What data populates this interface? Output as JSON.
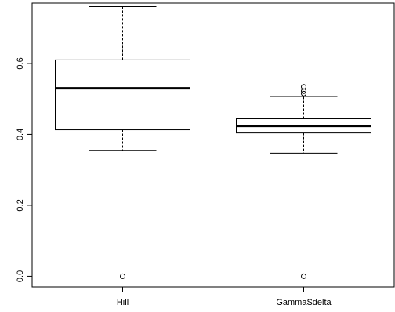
{
  "chart_data": {
    "type": "boxplot",
    "title": "",
    "xlabel": "",
    "ylabel": "",
    "ylim": [
      -0.03,
      0.77
    ],
    "y_ticks": [
      0.0,
      0.2,
      0.4,
      0.6
    ],
    "y_tick_labels": [
      "0.0",
      "0.2",
      "0.4",
      "0.6"
    ],
    "categories": [
      "Hill",
      "GammaSdelta"
    ],
    "boxes": [
      {
        "label": "Hill",
        "whisker_low": 0.355,
        "q1": 0.413,
        "median": 0.53,
        "q3": 0.61,
        "whisker_high": 0.76,
        "outliers": [
          0.0
        ]
      },
      {
        "label": "GammaSdelta",
        "whisker_low": 0.347,
        "q1": 0.404,
        "median": 0.424,
        "q3": 0.444,
        "whisker_high": 0.507,
        "outliers": [
          0.0,
          0.515,
          0.522,
          0.534
        ]
      }
    ],
    "grid": false,
    "legend": "none"
  }
}
